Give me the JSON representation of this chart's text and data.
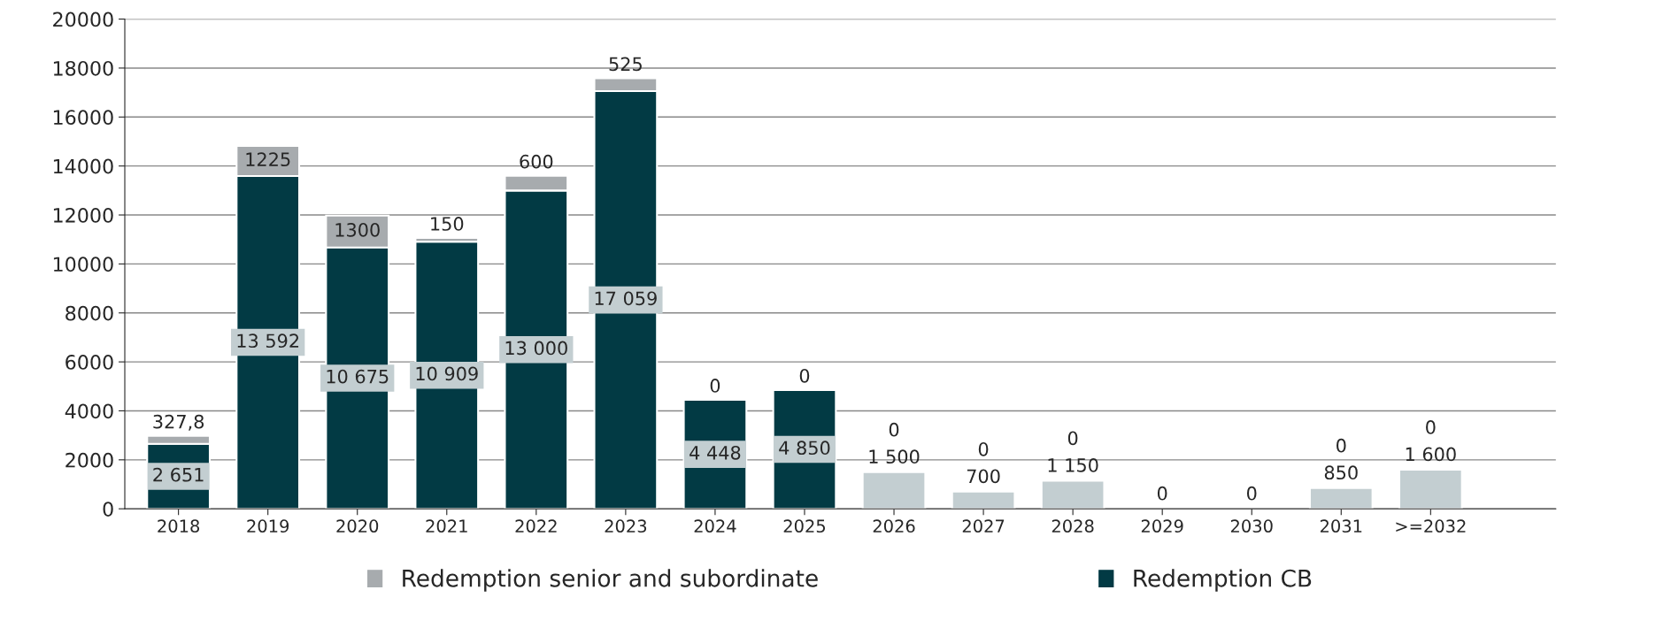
{
  "chart_data": {
    "type": "bar",
    "stacked": true,
    "categories": [
      "2018",
      "2019",
      "2020",
      "2021",
      "2022",
      "2023",
      "2024",
      "2025",
      "2026",
      "2027",
      "2028",
      "2029",
      "2030",
      "2031",
      ">=2032"
    ],
    "series": [
      {
        "name": "Redemption CB",
        "color": "#023a44",
        "colors": [
          "#023a44",
          "#023a44",
          "#023a44",
          "#023a44",
          "#023a44",
          "#023a44",
          "#023a44",
          "#023a44",
          "#c3ced1",
          "#c3ced1",
          "#c3ced1",
          "#c3ced1",
          "#c3ced1",
          "#c3ced1",
          "#c3ced1"
        ],
        "values": [
          2651,
          13592,
          10675,
          10909,
          13000,
          17059,
          4448,
          4850,
          1500,
          700,
          1150,
          0,
          0,
          850,
          1600
        ],
        "value_labels": [
          "2 651",
          "13 592",
          "10 675",
          "10 909",
          "13 000",
          "17 059",
          "4 448",
          "4 850",
          "1 500",
          "700",
          "1 150",
          "0",
          "0",
          "850",
          "1 600"
        ]
      },
      {
        "name": "Redemption senior and subordinate",
        "color": "#a7abae",
        "colors": [
          "#a7abae",
          "#a7abae",
          "#a7abae",
          "#a7abae",
          "#a7abae",
          "#a7abae",
          "#a7abae",
          "#a7abae",
          "#a7abae",
          "#a7abae",
          "#a7abae",
          "#a7abae",
          "#a7abae",
          "#a7abae",
          "#023a44"
        ],
        "values": [
          327.8,
          1225,
          1300,
          150,
          600,
          525,
          0,
          0,
          0,
          0,
          0,
          null,
          null,
          0,
          0
        ],
        "value_labels": [
          "327,8",
          "1225",
          "1300",
          "150",
          "600",
          "525",
          "0",
          "0",
          "0",
          "0",
          "0",
          null,
          null,
          "0",
          "0"
        ]
      }
    ],
    "ylim": [
      0,
      20000
    ],
    "yticks": [
      0,
      2000,
      4000,
      6000,
      8000,
      10000,
      12000,
      14000,
      16000,
      18000,
      20000
    ],
    "grid": "y",
    "legend": "bottom"
  }
}
